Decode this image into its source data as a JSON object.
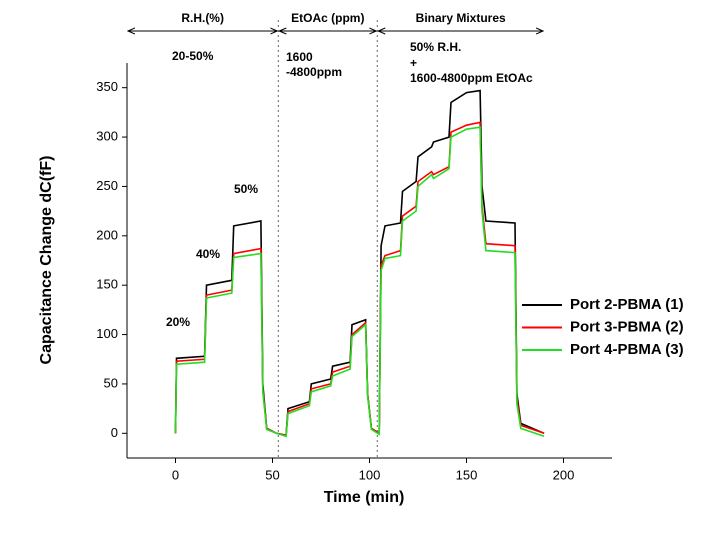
{
  "chart_data": {
    "type": "line",
    "xlabel": "Time (min)",
    "ylabel": "Capacitance Change dC(fF)",
    "xlim": [
      -25,
      225
    ],
    "ylim": [
      -25,
      375
    ],
    "xticks": [
      0,
      50,
      100,
      150,
      200
    ],
    "yticks": [
      0,
      50,
      100,
      150,
      200,
      250,
      300,
      350
    ],
    "dividers": [
      53,
      104
    ],
    "regions": [
      {
        "label": "R.H.(%)",
        "x": [
          -25,
          53
        ]
      },
      {
        "label": "EtOAc (ppm)",
        "x": [
          53,
          104
        ]
      },
      {
        "label": "Binary Mixtures",
        "x": [
          104,
          190
        ]
      }
    ],
    "annotations": [
      "20-50%",
      "1600",
      "-4800ppm",
      "50% R.H.",
      "+",
      "1600-4800ppm EtOAc",
      "20%",
      "40%",
      "50%"
    ],
    "series": [
      {
        "name": "Port 2-PBMA (1)",
        "color": "#000000",
        "x": [
          0,
          0.5,
          15,
          16,
          29,
          30,
          44,
          45,
          47,
          52,
          57,
          58,
          69,
          70,
          80,
          81,
          90,
          91,
          98,
          99,
          101,
          105,
          106,
          108,
          116,
          117,
          124,
          125,
          132,
          133,
          141,
          142,
          150,
          157,
          158,
          160,
          175,
          176,
          178,
          190
        ],
        "values": [
          0,
          76,
          78,
          150,
          155,
          210,
          215,
          50,
          5,
          0,
          -2,
          25,
          32,
          50,
          55,
          68,
          72,
          110,
          115,
          40,
          5,
          0,
          190,
          210,
          213,
          245,
          255,
          280,
          290,
          295,
          300,
          335,
          345,
          347,
          250,
          215,
          213,
          40,
          10,
          0
        ]
      },
      {
        "name": "Port 3-PBMA (2)",
        "color": "#ff0000",
        "x": [
          0,
          0.5,
          15,
          16,
          29,
          30,
          44,
          45,
          47,
          52,
          57,
          58,
          69,
          70,
          80,
          81,
          90,
          91,
          98,
          99,
          101,
          105,
          106,
          108,
          116,
          117,
          124,
          125,
          132,
          133,
          141,
          142,
          150,
          157,
          158,
          160,
          175,
          176,
          178,
          190
        ],
        "values": [
          0,
          73,
          75,
          140,
          145,
          182,
          187,
          45,
          5,
          0,
          -2,
          22,
          30,
          45,
          50,
          62,
          68,
          100,
          112,
          40,
          5,
          0,
          170,
          180,
          185,
          220,
          230,
          255,
          265,
          262,
          270,
          305,
          312,
          315,
          230,
          192,
          190,
          35,
          8,
          0
        ]
      },
      {
        "name": "Port 4-PBMA (3)",
        "color": "#22dd22",
        "x": [
          0,
          0.5,
          15,
          16,
          29,
          30,
          44,
          45,
          47,
          52,
          57,
          58,
          69,
          70,
          80,
          81,
          90,
          91,
          98,
          99,
          101,
          105,
          106,
          108,
          116,
          117,
          124,
          125,
          132,
          133,
          141,
          142,
          150,
          157,
          158,
          160,
          175,
          176,
          178,
          190
        ],
        "values": [
          0,
          70,
          72,
          137,
          142,
          178,
          182,
          42,
          4,
          0,
          -3,
          20,
          28,
          42,
          48,
          58,
          65,
          98,
          110,
          38,
          4,
          -1,
          165,
          177,
          180,
          215,
          225,
          250,
          262,
          258,
          268,
          300,
          308,
          310,
          225,
          185,
          183,
          30,
          5,
          -3
        ]
      }
    ]
  }
}
